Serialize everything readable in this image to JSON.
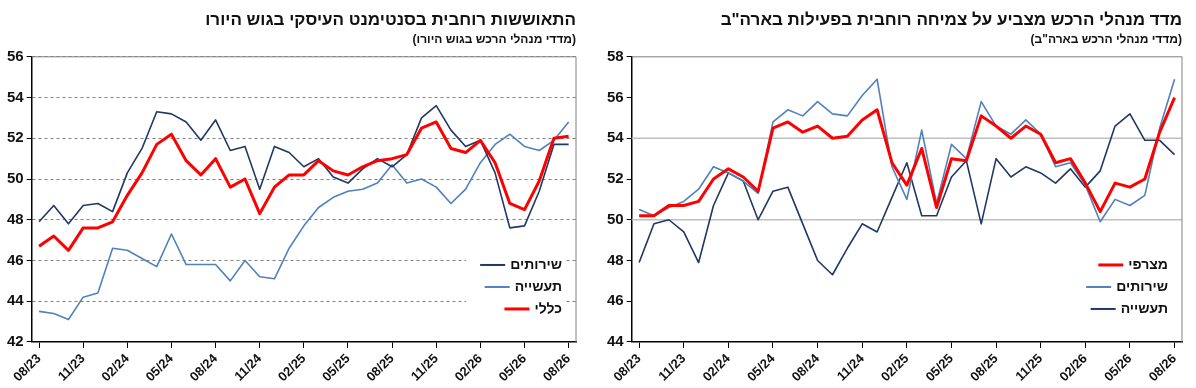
{
  "chart_data": [
    {
      "type": "line",
      "title": "התאוששות רוחבית בסנטימנט העיסקי בגוש היורו",
      "subtitle": "(מדדי מנהלי הרכש בגוש היורו)",
      "categories": [
        "08/23",
        null,
        null,
        "11/23",
        null,
        null,
        "02/24",
        null,
        null,
        "05/24",
        null,
        null,
        "08/24",
        null,
        null,
        "11/24",
        null,
        null,
        "02/25",
        null,
        null,
        "05/25",
        null,
        null,
        "08/25",
        null,
        null,
        "11/25",
        null,
        null,
        "02/26",
        null,
        null,
        "05/26",
        null,
        null,
        "08/26"
      ],
      "series": [
        {
          "name": "שירותים",
          "color": "#1f3864",
          "values": [
            47.9,
            48.7,
            47.8,
            48.7,
            48.8,
            48.4,
            50.3,
            51.5,
            53.3,
            53.2,
            52.8,
            51.9,
            52.9,
            51.4,
            51.6,
            49.5,
            51.6,
            51.3,
            50.6,
            51.0,
            50.1,
            49.8,
            50.5,
            51.0,
            50.6,
            51.2,
            53.0,
            53.6,
            52.4,
            51.6,
            51.9,
            50.3,
            47.6,
            47.7,
            49.4,
            51.7,
            51.7
          ]
        },
        {
          "name": "תעשייה",
          "color": "#4f81bd",
          "values": [
            43.5,
            43.4,
            43.1,
            44.2,
            44.4,
            46.6,
            46.5,
            46.1,
            45.7,
            47.3,
            45.8,
            45.8,
            45.8,
            45.0,
            46.0,
            45.2,
            45.1,
            46.6,
            47.7,
            48.6,
            49.1,
            49.4,
            49.5,
            49.8,
            50.7,
            49.8,
            50.0,
            49.6,
            48.8,
            49.5,
            50.8,
            51.7,
            52.2,
            51.6,
            51.4,
            51.9,
            52.8
          ]
        },
        {
          "name": "כללי",
          "color": "#ff0000",
          "values": [
            46.7,
            47.2,
            46.5,
            47.6,
            47.6,
            47.9,
            49.2,
            50.3,
            51.7,
            52.2,
            50.9,
            50.2,
            51.0,
            49.6,
            50.0,
            48.3,
            49.6,
            50.2,
            50.2,
            50.9,
            50.4,
            50.2,
            50.6,
            50.9,
            51.0,
            51.2,
            52.5,
            52.8,
            51.5,
            51.3,
            51.9,
            50.8,
            48.8,
            48.5,
            49.9,
            52.0,
            52.1
          ]
        }
      ],
      "ylim": [
        42,
        56
      ],
      "yticks": [
        42,
        44,
        46,
        48,
        50,
        52,
        54,
        56
      ],
      "grid": "y",
      "legend": "bottom right"
    },
    {
      "type": "line",
      "title": "מדד מנהלי הרכש מצביע על צמיחה רוחבית בפעילות בארה\"ב",
      "subtitle": "(מדדי מנהלי הרכש בארה\"ב)",
      "categories": [
        "08/23",
        null,
        null,
        "11/23",
        null,
        null,
        "02/24",
        null,
        null,
        "05/24",
        null,
        null,
        "08/24",
        null,
        null,
        "11/24",
        null,
        null,
        "02/25",
        null,
        null,
        "05/25",
        null,
        null,
        "08/25",
        null,
        null,
        "11/25",
        null,
        null,
        "02/26",
        null,
        null,
        "05/26",
        null,
        null,
        "08/26"
      ],
      "series": [
        {
          "name": "מצרפי",
          "color": "#ff0000",
          "values": [
            50.2,
            50.2,
            50.7,
            50.7,
            50.9,
            52.0,
            52.5,
            52.1,
            51.4,
            54.5,
            54.8,
            54.3,
            54.6,
            54.0,
            54.1,
            54.9,
            55.4,
            52.8,
            51.7,
            53.5,
            50.6,
            53.0,
            52.9,
            55.1,
            54.6,
            54.0,
            54.6,
            54.2,
            52.8,
            53.0,
            51.8,
            50.4,
            51.8,
            51.6,
            52.0,
            54.3,
            56.0
          ]
        },
        {
          "name": "שירותים",
          "color": "#4f81bd",
          "values": [
            50.5,
            50.2,
            50.6,
            50.9,
            51.5,
            52.6,
            52.3,
            51.9,
            51.3,
            54.8,
            55.4,
            55.1,
            55.8,
            55.2,
            55.1,
            56.1,
            56.9,
            52.6,
            51.0,
            54.4,
            50.8,
            53.7,
            53.0,
            55.8,
            54.6,
            54.2,
            54.9,
            54.2,
            52.6,
            52.8,
            51.7,
            49.9,
            51.0,
            50.7,
            51.2,
            54.5,
            56.9
          ]
        },
        {
          "name": "תעשייה",
          "color": "#1f3864",
          "values": [
            47.9,
            49.8,
            50.0,
            49.4,
            47.9,
            50.7,
            52.3,
            51.9,
            50.0,
            51.4,
            51.6,
            49.8,
            48.0,
            47.3,
            48.6,
            49.8,
            49.4,
            51.1,
            52.8,
            50.2,
            50.2,
            52.1,
            52.9,
            49.8,
            53.0,
            52.1,
            52.6,
            52.3,
            51.8,
            52.5,
            51.6,
            52.4,
            54.6,
            55.2,
            53.9,
            53.9,
            53.2
          ]
        }
      ],
      "ylim": [
        44,
        58
      ],
      "yticks": [
        44,
        46,
        48,
        50,
        52,
        54,
        56,
        58
      ],
      "grid": false,
      "legend": "bottom right",
      "ref_lines": [
        {
          "axis": "y",
          "value": 50,
          "color": "#bfbfbf"
        },
        {
          "axis": "y",
          "value": 54,
          "color": "#bfbfbf"
        }
      ]
    }
  ]
}
